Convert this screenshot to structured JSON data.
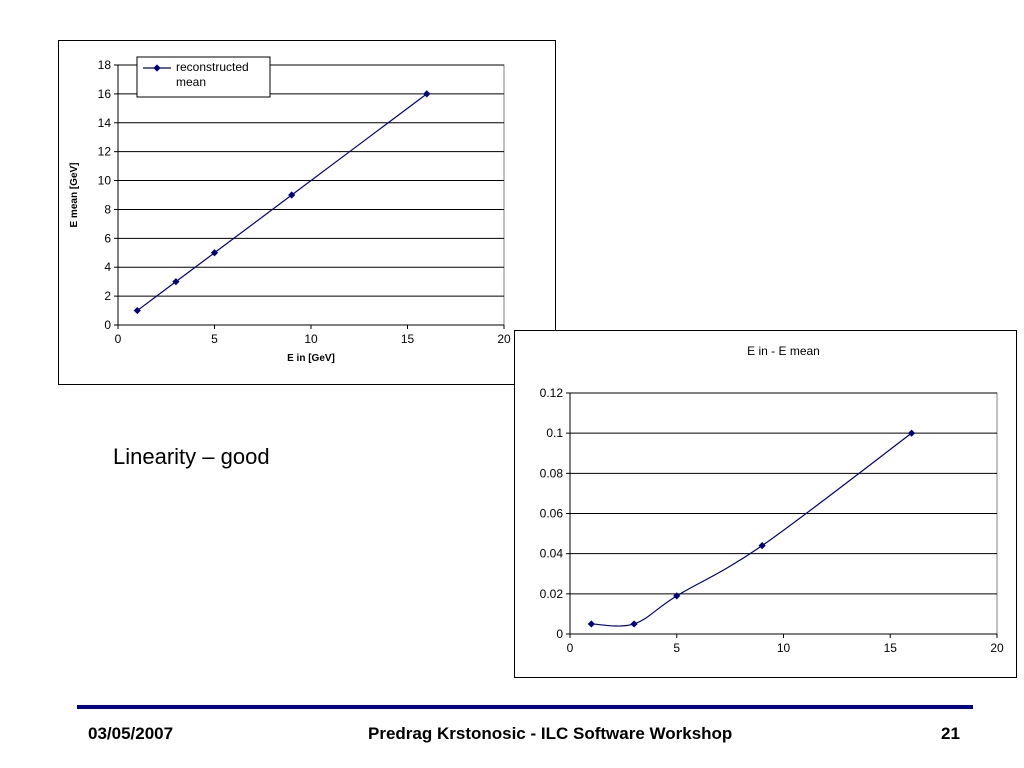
{
  "caption": "Linearity – good",
  "footer": {
    "date": "03/05/2007",
    "center": "Predrag Krstonosic - ILC Software Workshop",
    "page": "21"
  },
  "chart_data": [
    {
      "type": "line",
      "title": "",
      "xlabel": "E in [GeV]",
      "ylabel": "E mean [GeV]",
      "xlim": [
        0,
        20
      ],
      "ylim": [
        0,
        18
      ],
      "xticks": [
        "0",
        "5",
        "10",
        "15",
        "20"
      ],
      "yticks": [
        "0",
        "2",
        "4",
        "6",
        "8",
        "10",
        "12",
        "14",
        "16",
        "18"
      ],
      "grid": "horizontal",
      "legend_position": "top-left",
      "line_color": "#000080",
      "series": [
        {
          "name": "reconstructed mean",
          "x": [
            1,
            3,
            5,
            9,
            16
          ],
          "y": [
            1,
            3,
            5,
            9,
            16
          ]
        }
      ]
    },
    {
      "type": "line",
      "title": "E in - E mean",
      "xlabel": "",
      "ylabel": "",
      "xlim": [
        0,
        20
      ],
      "ylim": [
        0,
        0.12
      ],
      "xticks": [
        "0",
        "5",
        "10",
        "15",
        "20"
      ],
      "yticks": [
        "0",
        "0.02",
        "0.04",
        "0.06",
        "0.08",
        "0.1",
        "0.12"
      ],
      "grid": "horizontal",
      "legend_position": "none",
      "line_color": "#000080",
      "series": [
        {
          "x": [
            1,
            3,
            5,
            9,
            16
          ],
          "y": [
            0.005,
            0.005,
            0.019,
            0.044,
            0.1
          ]
        }
      ]
    }
  ]
}
